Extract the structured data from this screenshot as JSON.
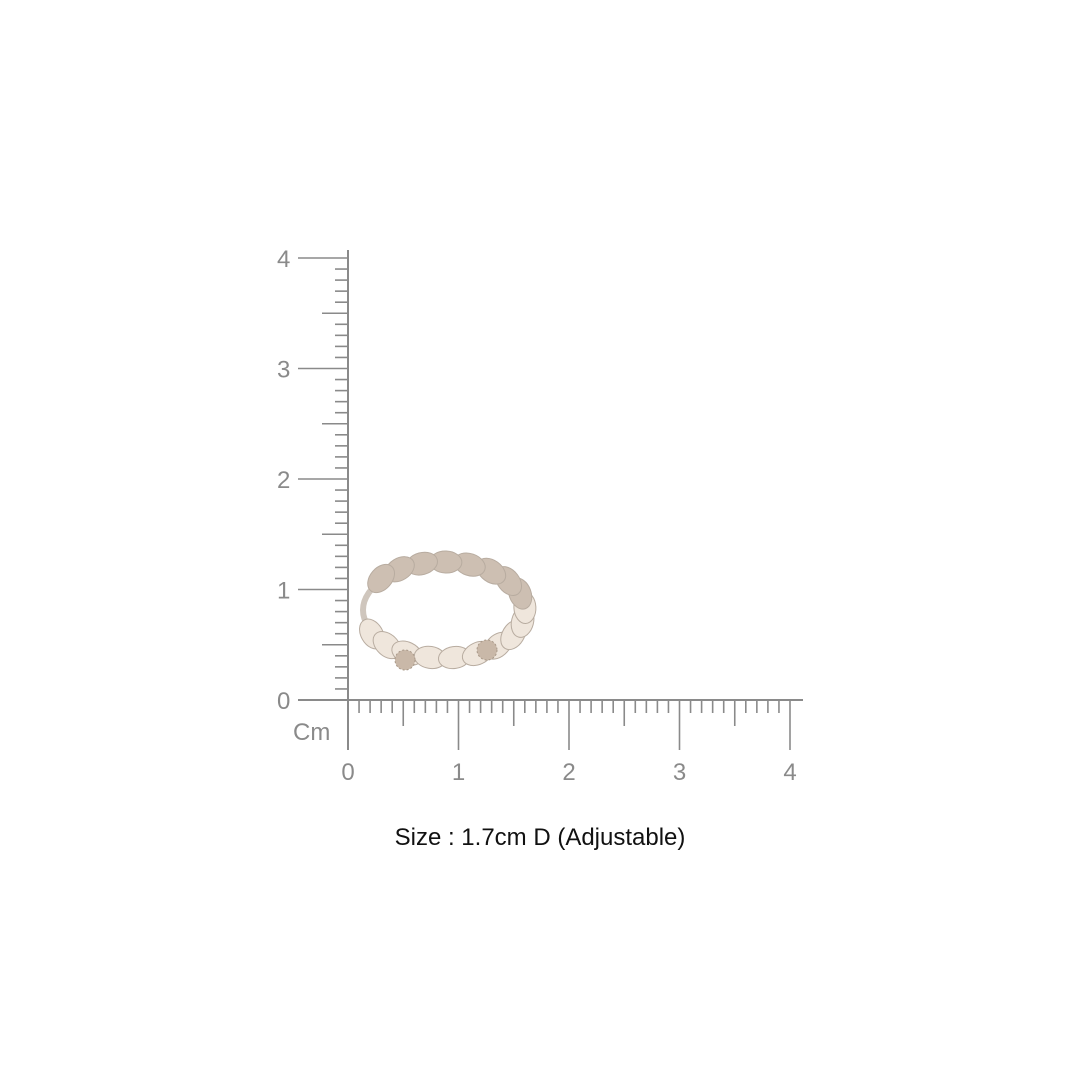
{
  "ruler": {
    "unit_label": "Cm",
    "x_ticks": [
      "0",
      "1",
      "2",
      "3",
      "4"
    ],
    "y_ticks": [
      "0",
      "1",
      "2",
      "3",
      "4"
    ],
    "range_cm": [
      0,
      4
    ],
    "color": "#8a8a8a"
  },
  "product": {
    "name": "leaf-ring",
    "caption": "Size : 1.7cm D (Adjustable)",
    "metal_color": "#d8cfc6",
    "enamel_color": "#efe6dc"
  }
}
